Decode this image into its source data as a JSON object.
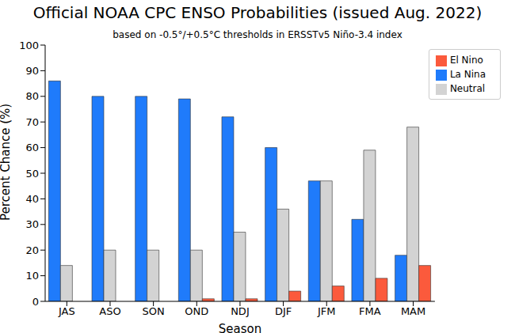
{
  "chart_data": {
    "type": "bar",
    "title": "Official NOAA CPC ENSO Probabilities (issued Aug. 2022)",
    "subtitle": "based on -0.5°/+0.5°C thresholds in ERSSTv5 Niño-3.4 index",
    "x_label": "Season",
    "y_label": "Percent Chance (%)",
    "categories": [
      "JAS",
      "ASO",
      "SON",
      "OND",
      "NDJ",
      "DJF",
      "JFM",
      "FMA",
      "MAM"
    ],
    "series": [
      {
        "name": "La Nina",
        "color": "#1f7bfb",
        "values": [
          86,
          80,
          80,
          79,
          72,
          60,
          47,
          32,
          18
        ]
      },
      {
        "name": "Neutral",
        "color": "#d3d3d3",
        "values": [
          14,
          20,
          20,
          20,
          27,
          36,
          47,
          59,
          68
        ]
      },
      {
        "name": "El Nino",
        "color": "#fb5a3c",
        "values": [
          0,
          0,
          0,
          1,
          1,
          4,
          6,
          9,
          14
        ]
      }
    ],
    "ylim": [
      0,
      100
    ],
    "yticks": [
      0,
      10,
      20,
      30,
      40,
      50,
      60,
      70,
      80,
      90,
      100
    ],
    "grid": false,
    "legend": "upper right"
  }
}
